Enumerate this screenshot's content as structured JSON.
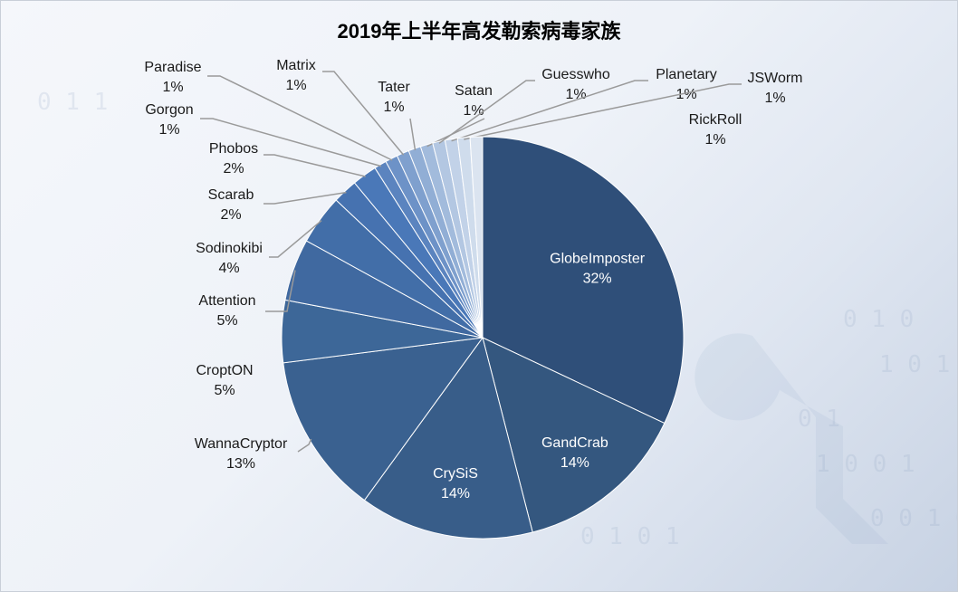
{
  "colors": {
    "inside_label": "#ffffff",
    "outside_label": "#1a1a1a",
    "leader": "#9a9a9a",
    "deco": "#8ea3c2"
  },
  "chart_data": {
    "type": "pie",
    "title": "2019年上半年高发勒索病毒家族",
    "slices": [
      {
        "label": "GlobeImposter",
        "value": 32,
        "pct": "32%",
        "color": "#2f4f79",
        "placement": "inside"
      },
      {
        "label": "GandCrab",
        "value": 14,
        "pct": "14%",
        "color": "#34577f",
        "placement": "inside"
      },
      {
        "label": "CrySiS",
        "value": 14,
        "pct": "14%",
        "color": "#385d89",
        "placement": "inside"
      },
      {
        "label": "WannaCryptor",
        "value": 13,
        "pct": "13%",
        "color": "#3a6190",
        "placement": "outside"
      },
      {
        "label": "CroptON",
        "value": 5,
        "pct": "5%",
        "color": "#3d6798",
        "placement": "outside"
      },
      {
        "label": "Attention",
        "value": 5,
        "pct": "5%",
        "color": "#4069a0",
        "placement": "outside"
      },
      {
        "label": "Sodinokibi",
        "value": 4,
        "pct": "4%",
        "color": "#426ea8",
        "placement": "outside"
      },
      {
        "label": "Scarab",
        "value": 2,
        "pct": "2%",
        "color": "#4672b0",
        "placement": "outside"
      },
      {
        "label": "Phobos",
        "value": 2,
        "pct": "2%",
        "color": "#4a78b8",
        "placement": "outside"
      },
      {
        "label": "Gorgon",
        "value": 1,
        "pct": "1%",
        "color": "#5b84bf",
        "placement": "outside"
      },
      {
        "label": "Paradise",
        "value": 1,
        "pct": "1%",
        "color": "#6d92c7",
        "placement": "outside"
      },
      {
        "label": "Matrix",
        "value": 1,
        "pct": "1%",
        "color": "#7fa0ce",
        "placement": "outside"
      },
      {
        "label": "Tater",
        "value": 1,
        "pct": "1%",
        "color": "#91aed5",
        "placement": "outside"
      },
      {
        "label": "Satan",
        "value": 1,
        "pct": "1%",
        "color": "#a2bbdc",
        "placement": "outside"
      },
      {
        "label": "Guesswho",
        "value": 1,
        "pct": "1%",
        "color": "#b3c7e2",
        "placement": "outside"
      },
      {
        "label": "Planetary",
        "value": 1,
        "pct": "1%",
        "color": "#c2d2e8",
        "placement": "outside"
      },
      {
        "label": "JSWorm",
        "value": 1,
        "pct": "1%",
        "color": "#cfdcec",
        "placement": "outside"
      },
      {
        "label": "RickRoll",
        "value": 1,
        "pct": "1%",
        "color": "#dbe4f0",
        "placement": "outside"
      }
    ]
  }
}
